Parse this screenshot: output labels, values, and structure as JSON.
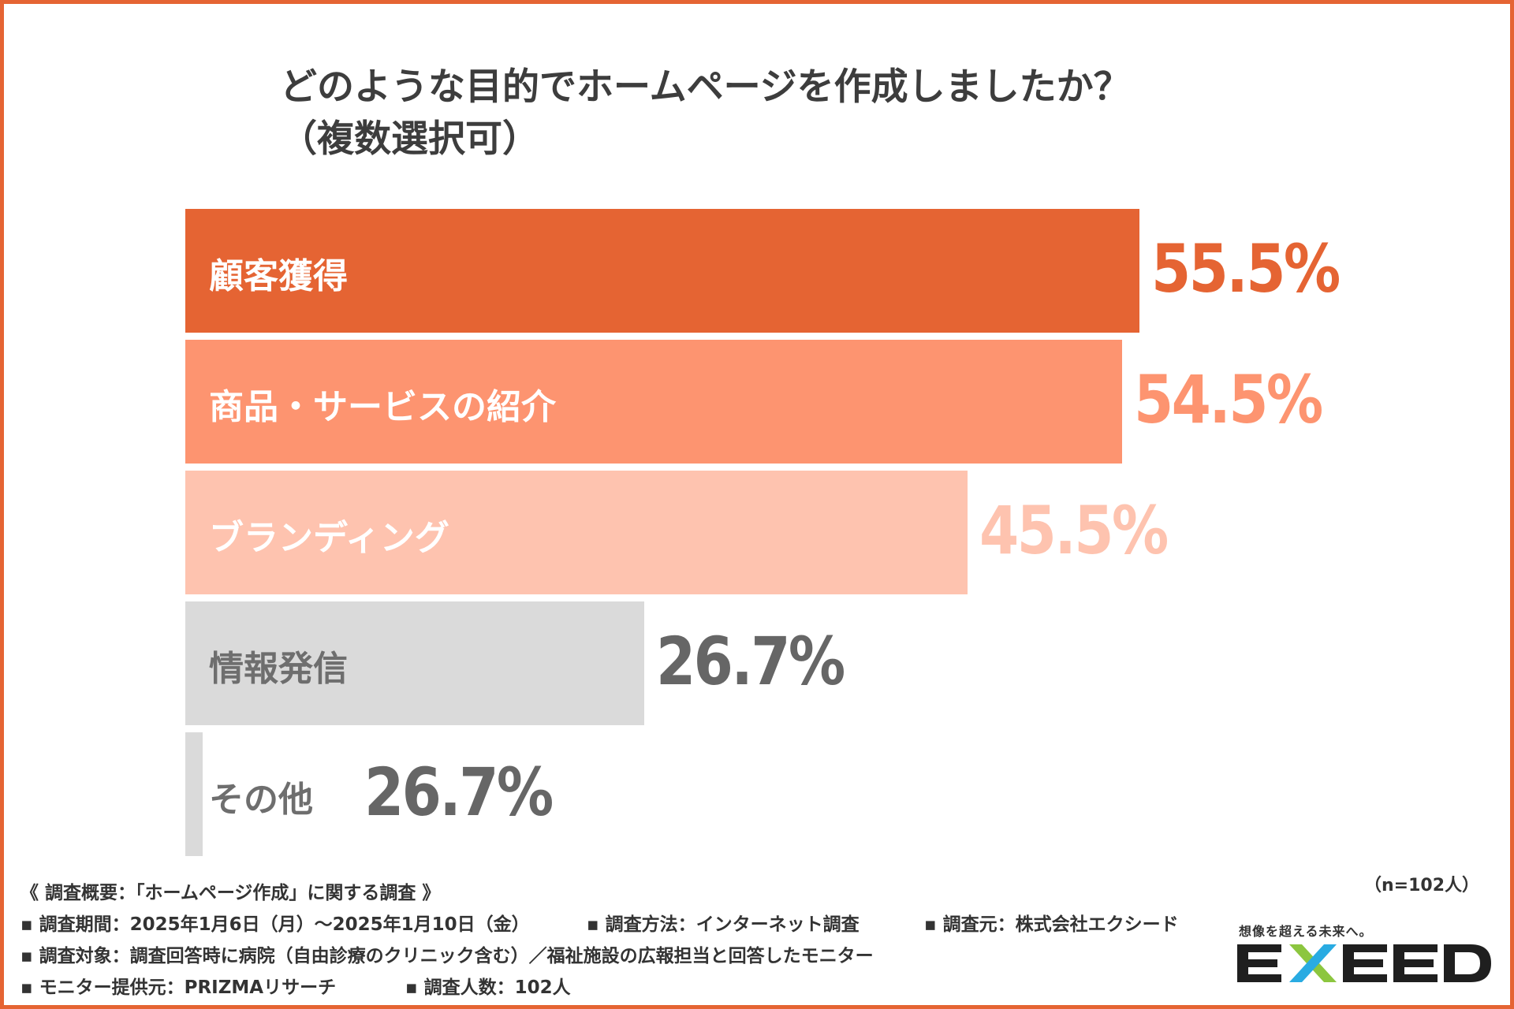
{
  "title_line1": "どのような目的でホームページを作成しましたか？",
  "title_line2": "（複数選択可）",
  "chart_data": {
    "type": "bar",
    "orientation": "horizontal",
    "title": "どのような目的でホームページを作成しましたか？（複数選択可）",
    "categories": [
      "顧客獲得",
      "商品・サービスの紹介",
      "ブランディング",
      "情報発信",
      "その他"
    ],
    "values": [
      55.5,
      54.5,
      45.5,
      26.7,
      26.7
    ],
    "value_labels": [
      "55.5%",
      "54.5%",
      "45.5%",
      "26.7%",
      "26.7%"
    ],
    "unit": "%",
    "bar_colors": [
      "#E56433",
      "#FD9470",
      "#FEC3AF",
      "#DADADA",
      "#DADADA"
    ],
    "label_colors": [
      "#ffffff",
      "#ffffff",
      "#ffffff",
      "#6e6e6e",
      "#6e6e6e"
    ],
    "value_colors": [
      "#E56433",
      "#FD9470",
      "#FEC3AF",
      "#666666",
      "#666666"
    ]
  },
  "note": {
    "sample": "（n=102人）"
  },
  "footer": {
    "heading": "《 調査概要：「ホームページ作成」に関する調査 》",
    "period": "▪ 調査期間：2025年1月6日（月）～2025年1月10日（金）",
    "method": "▪ 調査方法：インターネット調査",
    "source": "▪ 調査元：株式会社エクシード",
    "target": "▪ 調査対象：調査回答時に病院（自由診療のクリニック含む）／福祉施設の広報担当と回答したモニター",
    "provider": "▪ モニター提供元：PRIZMAリサーチ",
    "respondents": "▪ 調査人数：102人"
  },
  "logo": {
    "tagline": "想像を超える未来へ。",
    "brand": "EXEED"
  },
  "colors": {
    "frame": "#E56433",
    "title": "#3d3d3d",
    "logo_dark": "#1f1f1f",
    "logo_green": "#8cc63f",
    "logo_blue": "#29abe2"
  }
}
